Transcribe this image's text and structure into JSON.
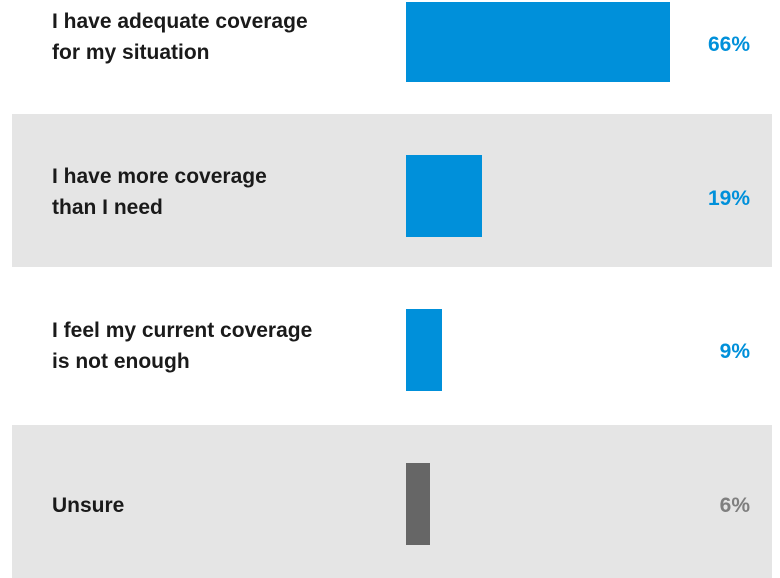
{
  "chart_data": {
    "type": "bar",
    "orientation": "horizontal",
    "categories": [
      "I have adequate coverage\nfor my situation",
      "I have more coverage\n than I need",
      "I feel my current coverage\nis not enough",
      "Unsure"
    ],
    "values": [
      66,
      19,
      9,
      6
    ],
    "value_labels": [
      "66%",
      "19%",
      "9%",
      "6%"
    ],
    "unit": "%",
    "xlim": [
      0,
      100
    ],
    "grid": false,
    "legend": "none",
    "colors": {
      "bar": "#0090da",
      "bar_unsure": "#666666",
      "label_pct": "#0090da",
      "label_pct_unsure": "#7f7f7f",
      "row_shade": "#e5e5e5"
    }
  }
}
